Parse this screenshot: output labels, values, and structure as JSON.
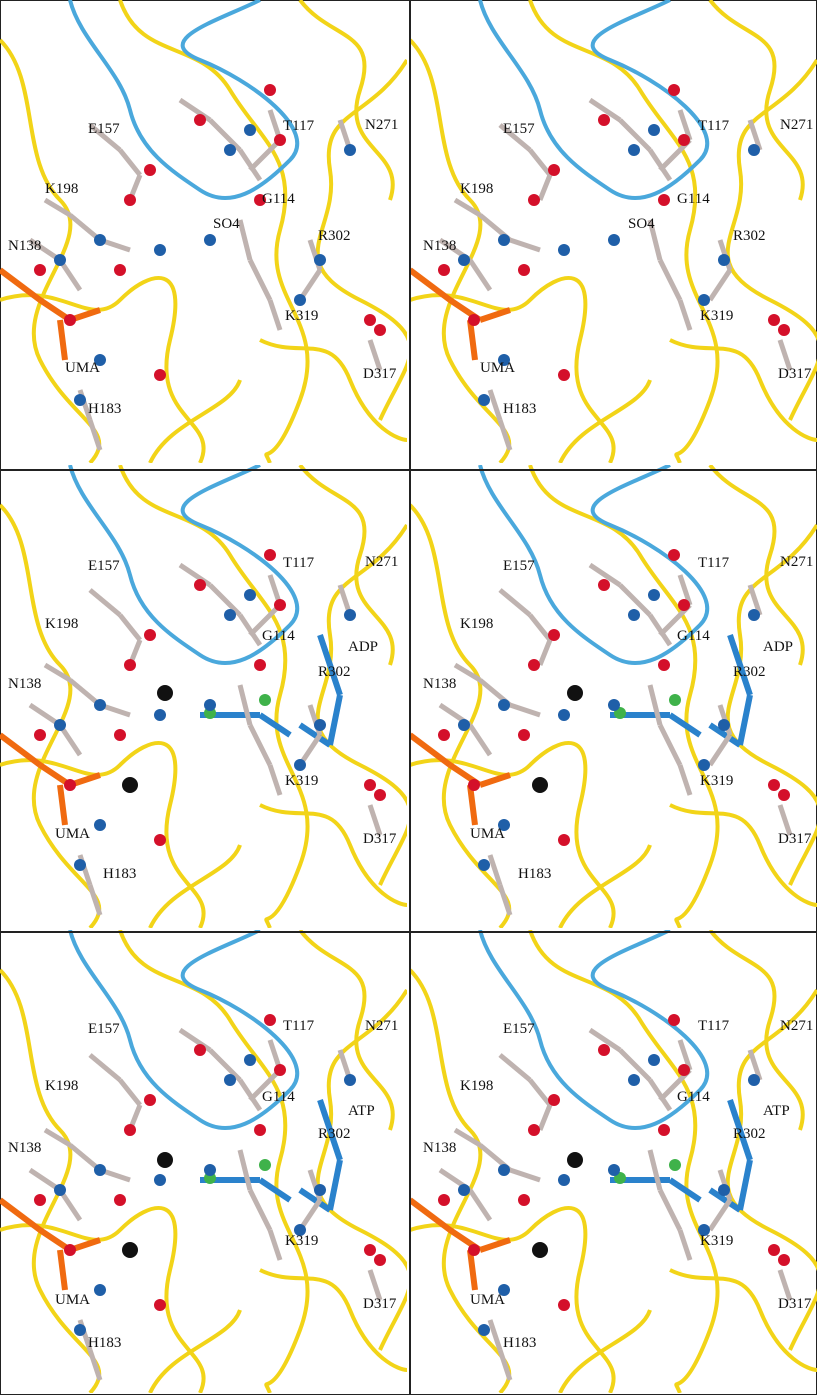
{
  "panels": [
    {
      "labels": [
        "E157",
        "T117",
        "N271",
        "G114",
        "K198",
        "SO4",
        "R302",
        "N138",
        "K319",
        "UMA",
        "D317",
        "H183"
      ]
    },
    {
      "labels": [
        "E157",
        "T117",
        "N271",
        "G114",
        "K198",
        "SO4",
        "R302",
        "N138",
        "K319",
        "UMA",
        "D317",
        "H183"
      ]
    },
    {
      "labels": [
        "E157",
        "T117",
        "N271",
        "G114",
        "K198",
        "ADP",
        "R302",
        "N138",
        "K319",
        "UMA",
        "D317",
        "H183"
      ]
    },
    {
      "labels": [
        "E157",
        "T117",
        "N271",
        "G114",
        "K198",
        "ADP",
        "R302",
        "N138",
        "K319",
        "UMA",
        "D317",
        "H183"
      ]
    },
    {
      "labels": [
        "E157",
        "T117",
        "N271",
        "G114",
        "K198",
        "ATP",
        "R302",
        "N138",
        "K319",
        "UMA",
        "D317",
        "H183"
      ]
    },
    {
      "labels": [
        "E157",
        "T117",
        "N271",
        "G114",
        "K198",
        "ATP",
        "R302",
        "N138",
        "K319",
        "UMA",
        "D317",
        "H183"
      ]
    }
  ]
}
